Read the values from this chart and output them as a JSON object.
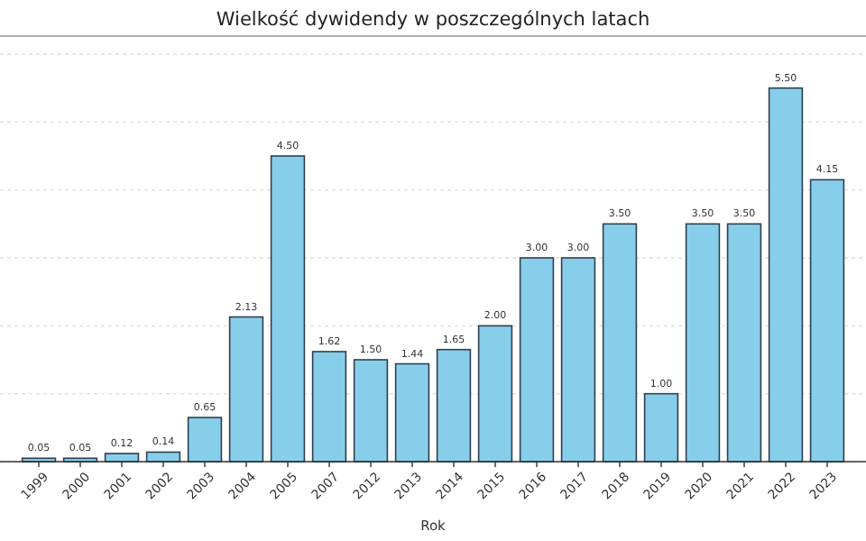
{
  "chart_data": {
    "type": "bar",
    "title": "Wielkość dywidendy w poszczególnych latach",
    "xlabel": "Rok",
    "categories": [
      "1999",
      "2000",
      "2001",
      "2002",
      "2003",
      "2004",
      "2005",
      "2007",
      "2012",
      "2013",
      "2014",
      "2015",
      "2016",
      "2017",
      "2018",
      "2019",
      "2020",
      "2021",
      "2022",
      "2023"
    ],
    "values": [
      0.05,
      0.05,
      0.12,
      0.14,
      0.65,
      2.13,
      4.5,
      1.62,
      1.5,
      1.44,
      1.65,
      2.0,
      3.0,
      3.0,
      3.5,
      1.0,
      3.5,
      3.5,
      5.5,
      4.15
    ],
    "value_labels": [
      "0.05",
      "0.05",
      "0.12",
      "0.14",
      "0.65",
      "2.13",
      "4.50",
      "1.62",
      "1.50",
      "1.44",
      "1.65",
      "2.00",
      "3.00",
      "3.00",
      "3.50",
      "1.00",
      "3.50",
      "3.50",
      "5.50",
      "4.15"
    ],
    "color": "#87ceeb",
    "ylim": [
      0,
      6
    ],
    "yticks": [
      {
        "value": 0,
        "label": null
      },
      {
        "value": 1,
        "label": null
      },
      {
        "value": 2,
        "label": null
      },
      {
        "value": 3,
        "label": null
      },
      {
        "value": 4,
        "label": null
      },
      {
        "value": 5,
        "label": null
      },
      {
        "value": 6,
        "label": null
      }
    ],
    "grid": "y",
    "tick_labels": "x"
  }
}
